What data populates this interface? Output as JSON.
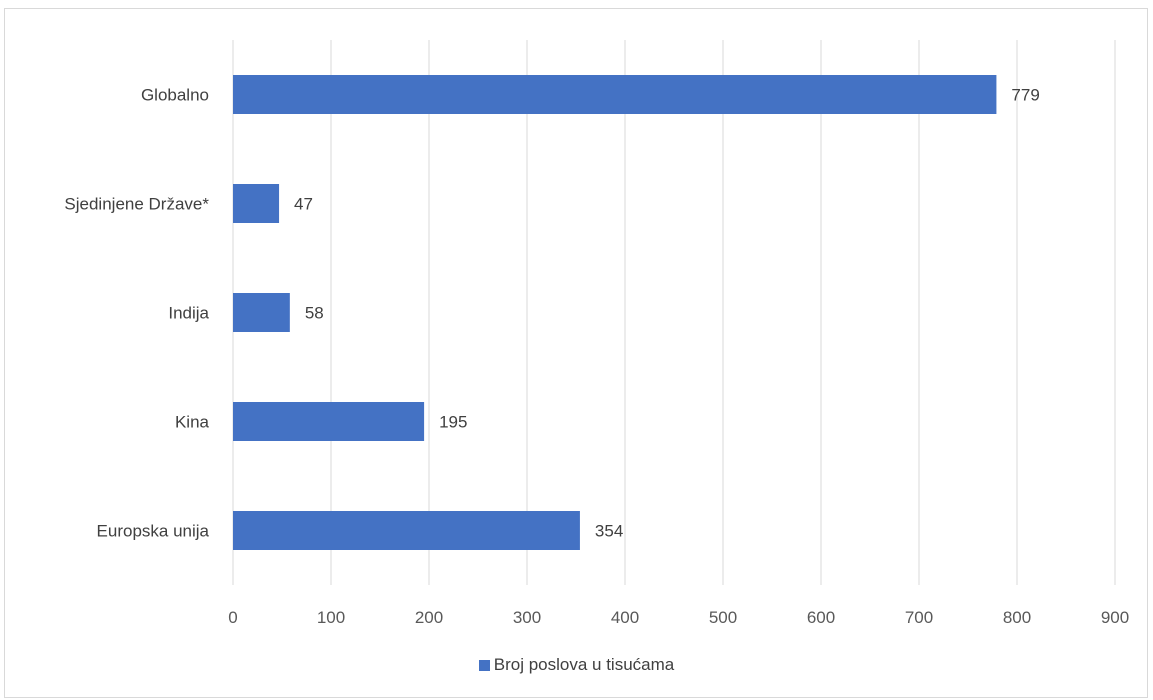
{
  "chart_data": {
    "type": "bar",
    "orientation": "horizontal",
    "categories": [
      "Globalno",
      "Sjedinjene Države*",
      "Indija",
      "Kina",
      "Europska unija"
    ],
    "series": [
      {
        "name": "Broj poslova u tisućama",
        "values": [
          779,
          47,
          58,
          195,
          354
        ],
        "color": "#4472c4"
      }
    ],
    "data_labels": [
      "779",
      "47",
      "58",
      "195",
      "354"
    ],
    "xlim": [
      0,
      900
    ],
    "xticks": [
      "0",
      "100",
      "200",
      "300",
      "400",
      "500",
      "600",
      "700",
      "800",
      "900"
    ],
    "grid": true,
    "legend_position": "bottom"
  }
}
